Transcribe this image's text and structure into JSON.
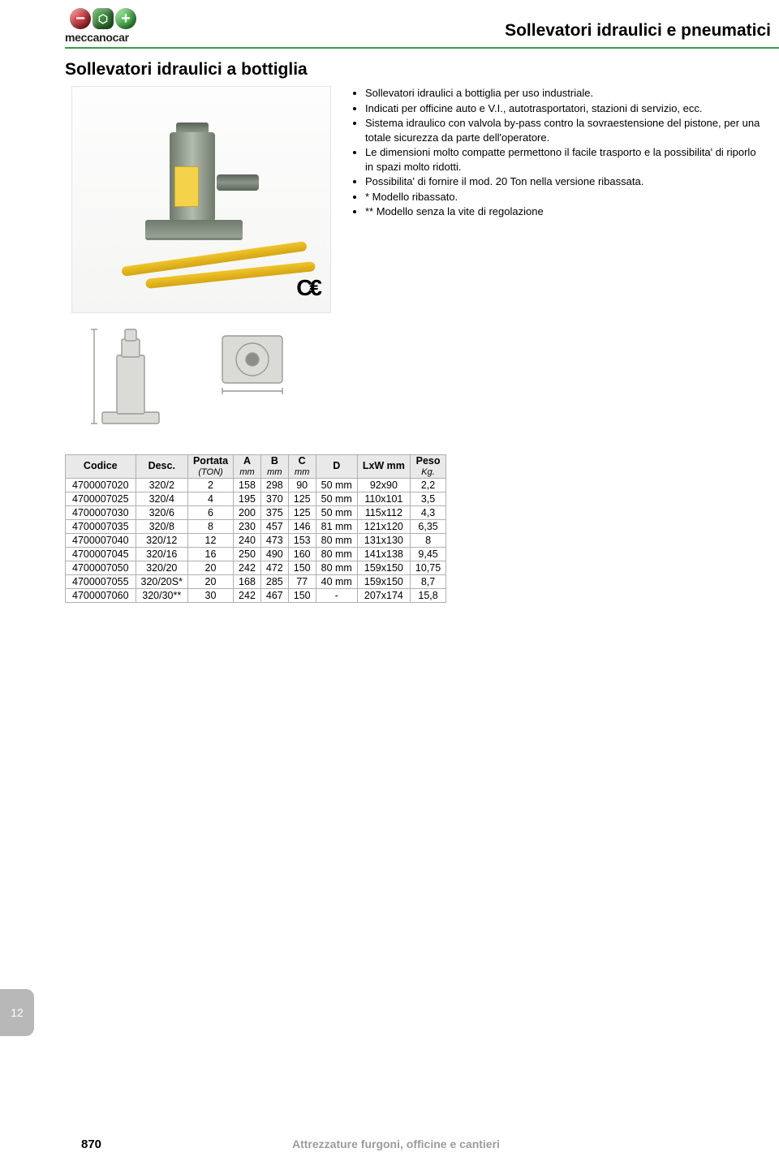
{
  "colors": {
    "green_rule": "#3f9b47",
    "ball_red": "#b51f24",
    "ball_green_dark": "#2f6b2e",
    "ball_green": "#3aa948"
  },
  "logo": {
    "brand": "meccanocar"
  },
  "header": {
    "category_title": "Sollevatori idraulici e pneumatici"
  },
  "section": {
    "title": "Sollevatori idraulici a bottiglia"
  },
  "bullets": {
    "items": [
      "Sollevatori idraulici a bottiglia per uso industriale.",
      "Indicati per officine auto e V.I., autotrasportatori, stazioni di servizio, ecc.",
      "Sistema idraulico con valvola by-pass contro la sovraestensione del pistone, per una totale sicurezza da parte dell'operatore.",
      "Le dimensioni molto compatte permettono il facile trasporto e la possibilita' di riporlo in spazi molto ridotti.",
      "Possibilita' di fornire il mod. 20 Ton nella versione ribassata.",
      "* Modello ribassato.",
      "** Modello senza la vite di regolazione"
    ]
  },
  "ce": {
    "label": "C€"
  },
  "table": {
    "columns": [
      {
        "label": "Codice",
        "sub": ""
      },
      {
        "label": "Desc.",
        "sub": ""
      },
      {
        "label": "Portata",
        "sub": "(TON)"
      },
      {
        "label": "A",
        "sub": "mm"
      },
      {
        "label": "B",
        "sub": "mm"
      },
      {
        "label": "C",
        "sub": "mm"
      },
      {
        "label": "D",
        "sub": ""
      },
      {
        "label": "LxW mm",
        "sub": ""
      },
      {
        "label": "Peso",
        "sub": "Kg."
      }
    ],
    "rows": [
      [
        "4700007020",
        "320/2",
        "2",
        "158",
        "298",
        "90",
        "50 mm",
        "92x90",
        "2,2"
      ],
      [
        "4700007025",
        "320/4",
        "4",
        "195",
        "370",
        "125",
        "50 mm",
        "110x101",
        "3,5"
      ],
      [
        "4700007030",
        "320/6",
        "6",
        "200",
        "375",
        "125",
        "50 mm",
        "115x112",
        "4,3"
      ],
      [
        "4700007035",
        "320/8",
        "8",
        "230",
        "457",
        "146",
        "81 mm",
        "121x120",
        "6,35"
      ],
      [
        "4700007040",
        "320/12",
        "12",
        "240",
        "473",
        "153",
        "80 mm",
        "131x130",
        "8"
      ],
      [
        "4700007045",
        "320/16",
        "16",
        "250",
        "490",
        "160",
        "80 mm",
        "141x138",
        "9,45"
      ],
      [
        "4700007050",
        "320/20",
        "20",
        "242",
        "472",
        "150",
        "80 mm",
        "159x150",
        "10,75"
      ],
      [
        "4700007055",
        "320/20S*",
        "20",
        "168",
        "285",
        "77",
        "40 mm",
        "159x150",
        "8,7"
      ],
      [
        "4700007060",
        "320/30**",
        "30",
        "242",
        "467",
        "150",
        "-",
        "207x174",
        "15,8"
      ]
    ]
  },
  "page": {
    "tab": "12",
    "number": "870",
    "footer_category": "Attrezzature furgoni, officine e cantieri"
  }
}
